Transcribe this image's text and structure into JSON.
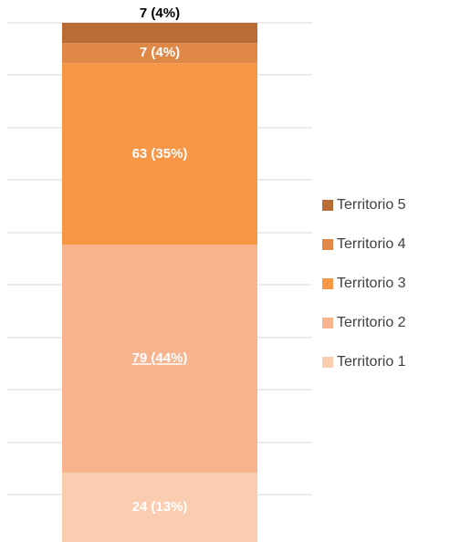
{
  "chart_data": {
    "type": "stacked_bar",
    "ylim": [
      0,
      180
    ],
    "series": [
      {
        "name": "Territorio 1",
        "color": "#fbcdb0",
        "values": [
          24
        ],
        "value_labels": [
          "24 (13%)"
        ]
      },
      {
        "name": "Territorio 2",
        "color": "#f8b48f",
        "values": [
          79
        ],
        "value_labels": [
          "79 (44%)"
        ]
      },
      {
        "name": "Territorio 3",
        "color": "#f79646",
        "values": [
          63
        ],
        "value_labels": [
          "63 (35%)"
        ]
      },
      {
        "name": "Territorio 4",
        "color": "#df8847",
        "values": [
          7
        ],
        "value_labels": [
          "7 (4%)"
        ]
      },
      {
        "name": "Territorio 5",
        "color": "#b96d35",
        "values": [
          7
        ],
        "value_labels": [
          "7 (4%)"
        ]
      }
    ]
  }
}
